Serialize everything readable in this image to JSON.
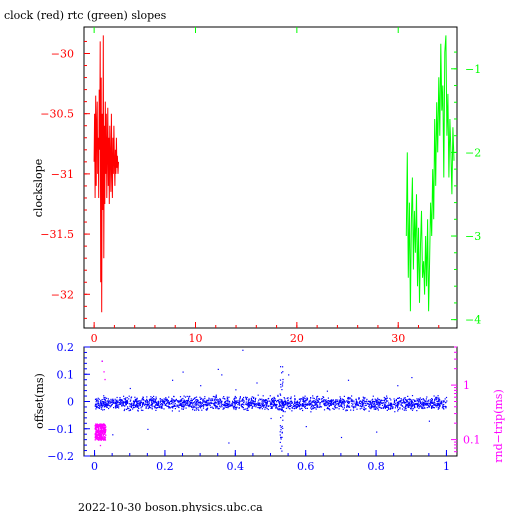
{
  "title": "clock (red) rtc (green) slopes",
  "footer": "2022-10-30  boson.physics.ubc.ca",
  "colors": {
    "clock": "#ff0000",
    "rtc": "#00ff00",
    "offset": "#0000ff",
    "roundtrip": "#ff00ff",
    "axis": "#000000"
  },
  "chart_data": [
    {
      "type": "line",
      "title": "clock (red) rtc (green) slopes",
      "ylabel": "clockslope",
      "xlim": [
        -1,
        35.8
      ],
      "ylim": [
        -32.28,
        -29.78
      ],
      "x_ticks": [
        0,
        10,
        20,
        30
      ],
      "y_ticks": [
        -30,
        -30.5,
        -31,
        -31.5,
        -32
      ],
      "y_tick_labels": [
        "−30",
        "−30.5",
        "−31",
        "−31.5",
        "−32"
      ],
      "right_axis": {
        "ylim": [
          -4.1,
          -0.5
        ],
        "ticks": [
          -1,
          -2,
          -3,
          -4
        ],
        "tick_labels": [
          "−1",
          "−2",
          "−3",
          "−4"
        ],
        "color": "#00ff00"
      },
      "grid": false,
      "series": [
        {
          "name": "clock",
          "color": "#ff0000",
          "x": [
            0.0,
            0.05,
            0.1,
            0.15,
            0.2,
            0.25,
            0.3,
            0.35,
            0.4,
            0.45,
            0.5,
            0.55,
            0.6,
            0.65,
            0.7,
            0.75,
            0.8,
            0.85,
            0.9,
            0.95,
            1.0,
            1.05,
            1.1,
            1.15,
            1.2,
            1.25,
            1.3,
            1.35,
            1.4,
            1.45,
            1.5,
            1.55,
            1.6,
            1.65,
            1.7,
            1.75,
            1.8,
            1.85,
            1.9,
            1.95,
            2.0,
            2.05,
            2.1,
            2.15,
            2.2,
            2.25,
            2.3,
            2.35,
            2.4
          ],
          "y": [
            -30.9,
            -30.5,
            -31.2,
            -30.35,
            -31.1,
            -30.6,
            -30.4,
            -31.0,
            -30.7,
            -31.2,
            -30.3,
            -30.8,
            -29.9,
            -31.9,
            -30.2,
            -32.15,
            -30.5,
            -31.3,
            -29.85,
            -31.7,
            -30.6,
            -31.25,
            -30.4,
            -31.0,
            -30.5,
            -31.2,
            -30.8,
            -30.45,
            -31.1,
            -30.7,
            -31.25,
            -30.6,
            -30.9,
            -31.15,
            -30.5,
            -30.95,
            -31.2,
            -30.7,
            -31.0,
            -30.6,
            -30.9,
            -31.1,
            -30.8,
            -31.0,
            -30.7,
            -30.95,
            -30.85,
            -31.0,
            -30.9
          ]
        },
        {
          "name": "rtc",
          "color": "#00ff00",
          "axis": "right",
          "x": [
            30.8,
            30.9,
            31.0,
            31.1,
            31.2,
            31.3,
            31.4,
            31.5,
            31.6,
            31.7,
            31.8,
            31.9,
            32.0,
            32.1,
            32.2,
            32.3,
            32.4,
            32.5,
            32.6,
            32.7,
            32.8,
            32.9,
            33.0,
            33.1,
            33.2,
            33.3,
            33.4,
            33.5,
            33.6,
            33.7,
            33.8,
            33.9,
            34.0,
            34.1,
            34.2,
            34.3,
            34.4,
            34.5,
            34.6,
            34.7,
            34.8,
            34.9,
            35.0,
            35.1,
            35.2,
            35.3,
            35.4,
            35.5
          ],
          "y": [
            -3.0,
            -2.0,
            -3.5,
            -2.6,
            -3.9,
            -2.8,
            -2.3,
            -3.4,
            -2.7,
            -3.2,
            -2.5,
            -3.6,
            -2.9,
            -3.8,
            -3.1,
            -2.7,
            -3.5,
            -3.3,
            -3.7,
            -3.0,
            -3.6,
            -2.8,
            -3.9,
            -3.3,
            -2.6,
            -3.0,
            -2.2,
            -2.8,
            -1.6,
            -2.4,
            -1.4,
            -2.0,
            -1.1,
            -1.8,
            -0.7,
            -1.5,
            -1.2,
            -2.3,
            -0.8,
            -0.6,
            -1.8,
            -1.3,
            -2.3,
            -1.6,
            -2.0,
            -2.5,
            -1.7,
            -2.1
          ]
        }
      ]
    },
    {
      "type": "scatter",
      "ylabel": "offset(ms)",
      "right_ylabel": "rnd−trip(ms)",
      "xlim": [
        -0.03,
        1.03
      ],
      "ylim": [
        -0.2,
        0.2
      ],
      "x_ticks": [
        0,
        0.2,
        0.4,
        0.6,
        0.8,
        1
      ],
      "x_tick_labels": [
        "0",
        "0.2",
        "0.4",
        "0.6",
        "0.8",
        "1"
      ],
      "y_ticks": [
        0.2,
        0.1,
        0,
        -0.1,
        -0.2
      ],
      "y_tick_labels": [
        "0.2",
        "0.1",
        "0",
        "−0.1",
        "−0.2"
      ],
      "right_axis": {
        "scale": "log",
        "ylim": [
          0.05,
          5
        ],
        "ticks": [
          1,
          0.1
        ],
        "tick_labels": [
          "1",
          "0.1"
        ],
        "color": "#ff00ff"
      },
      "grid": false,
      "series": [
        {
          "name": "offset",
          "color": "#0000ff",
          "band": {
            "x": [
              0,
              1
            ],
            "y_center": -0.005,
            "y_spread": 0.035
          },
          "outliers": {
            "x": [
              0.02,
              0.05,
              0.1,
              0.15,
              0.22,
              0.3,
              0.35,
              0.38,
              0.42,
              0.46,
              0.5,
              0.55,
              0.6,
              0.66,
              0.72,
              0.8,
              0.86,
              0.9,
              0.95,
              0.36,
              0.4,
              0.7,
              0.25
            ],
            "y": [
              0.15,
              -0.12,
              0.05,
              -0.1,
              0.08,
              0.06,
              0.12,
              -0.15,
              0.19,
              0.07,
              -0.06,
              0.1,
              -0.09,
              0.04,
              0.08,
              -0.11,
              0.06,
              0.09,
              -0.07,
              0.1,
              0.045,
              -0.13,
              0.11
            ]
          },
          "spike": {
            "x": 0.53,
            "y_min": -0.19,
            "y_max": 0.14
          }
        },
        {
          "name": "roundtrip",
          "color": "#ff00ff",
          "axis": "right",
          "cluster": {
            "x": [
              0.0,
              0.03
            ],
            "y_min": 0.1,
            "y_max": 0.2
          },
          "outliers": {
            "x": [
              0.02,
              0.025,
              0.015,
              0.028
            ],
            "y": [
              2.8,
              1.8,
              0.08,
              1.3
            ]
          }
        }
      ]
    }
  ]
}
